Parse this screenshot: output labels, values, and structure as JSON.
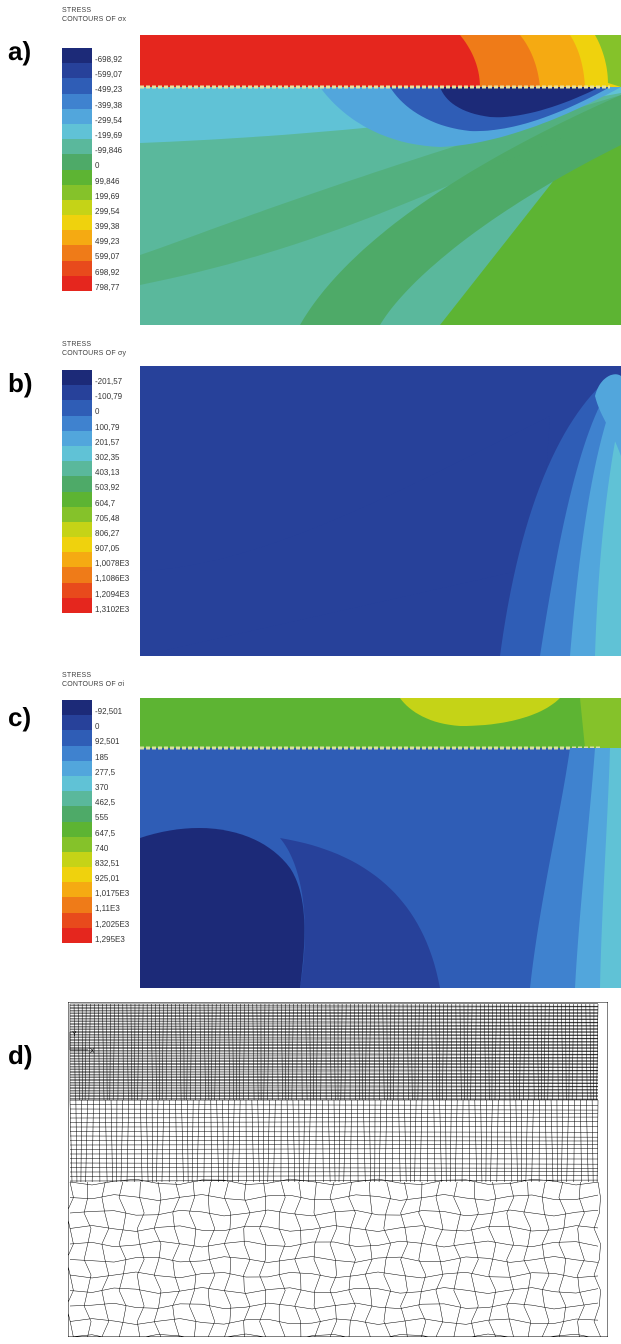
{
  "panels": [
    {
      "letter": "a)",
      "header1": "STRESS",
      "header2": "CONTOURS OF σx",
      "colors": [
        "#1c2a78",
        "#27419a",
        "#2f5db6",
        "#3f82cf",
        "#52a6dc",
        "#60c2d6",
        "#5ab89c",
        "#4eaa68",
        "#5db433",
        "#85c22a",
        "#c5d317",
        "#efd20d",
        "#f5aa12",
        "#ef7b18",
        "#e84a1c",
        "#e5261e"
      ],
      "labels": [
        "-698,92",
        "-599,07",
        "-499,23",
        "-399,38",
        "-299,54",
        "-199,69",
        "-99,846",
        "0",
        "99,846",
        "199,69",
        "299,54",
        "399,38",
        "499,23",
        "599,07",
        "698,92",
        "798,77"
      ]
    },
    {
      "letter": "b)",
      "header1": "STRESS",
      "header2": "CONTOURS OF σy",
      "colors": [
        "#1c2a78",
        "#27419a",
        "#2f5db6",
        "#3f82cf",
        "#52a6dc",
        "#60c2d6",
        "#5ab89c",
        "#4eaa68",
        "#5db433",
        "#85c22a",
        "#c5d317",
        "#efd20d",
        "#f5aa12",
        "#ef7b18",
        "#e84a1c",
        "#e5261e"
      ],
      "labels": [
        "-201,57",
        "-100,79",
        "0",
        "100,79",
        "201,57",
        "302,35",
        "403,13",
        "503,92",
        "604,7",
        "705,48",
        "806,27",
        "907,05",
        "1,0078E3",
        "1,1086E3",
        "1,2094E3",
        "1,3102E3"
      ]
    },
    {
      "letter": "c)",
      "header1": "STRESS",
      "header2": "CONTOURS OF σi",
      "colors": [
        "#1c2a78",
        "#27419a",
        "#2f5db6",
        "#3f82cf",
        "#52a6dc",
        "#60c2d6",
        "#5ab89c",
        "#4eaa68",
        "#5db433",
        "#85c22a",
        "#c5d317",
        "#efd20d",
        "#f5aa12",
        "#ef7b18",
        "#e84a1c",
        "#e5261e"
      ],
      "labels": [
        "-92,501",
        "0",
        "92,501",
        "185",
        "277,5",
        "370",
        "462,5",
        "555",
        "647,5",
        "740",
        "832,51",
        "925,01",
        "1,0175E3",
        "1,11E3",
        "1,2025E3",
        "1,295E3"
      ]
    },
    {
      "letter": "d)"
    }
  ],
  "mesh_axis": {
    "y_label": "Y",
    "x_label": "X"
  }
}
